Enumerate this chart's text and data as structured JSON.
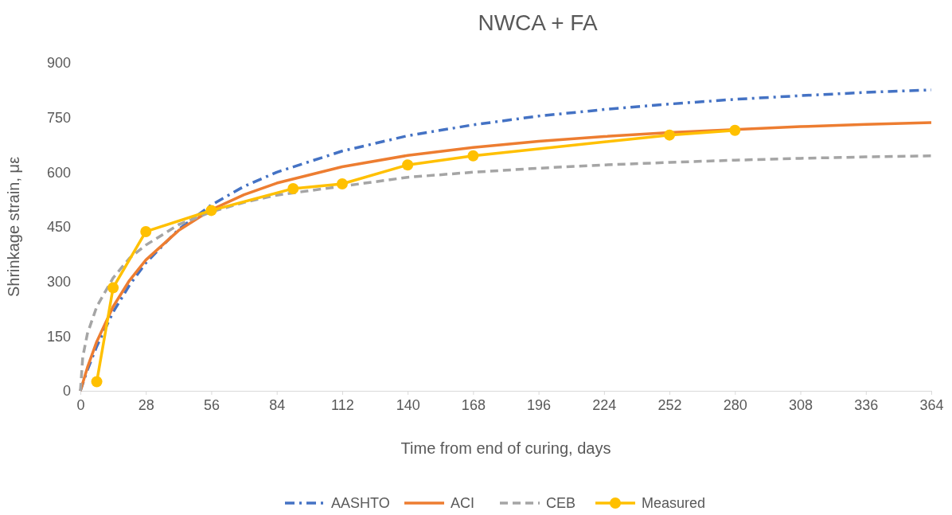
{
  "chart_data": {
    "type": "line",
    "title": "NWCA + FA",
    "xlabel": "Time from end of curing, days",
    "ylabel": "Shrinkage strain, με",
    "xlim": [
      0,
      364
    ],
    "xticks": [
      0,
      28,
      56,
      84,
      112,
      140,
      168,
      196,
      224,
      252,
      280,
      308,
      336,
      364
    ],
    "ylim": [
      0,
      900
    ],
    "yticks": [
      0,
      150,
      300,
      450,
      600,
      750,
      900
    ],
    "legend": "bottom",
    "series": [
      {
        "name": "AASHTO",
        "color": "#4472c4",
        "line_style": "dashdot",
        "marker": "none",
        "x": [
          0,
          3,
          7,
          14,
          21,
          28,
          42,
          56,
          70,
          84,
          112,
          140,
          168,
          196,
          224,
          252,
          280,
          308,
          336,
          364
        ],
        "values": [
          0,
          57,
          122,
          216,
          290,
          351,
          443,
          510,
          561,
          600,
          658,
          700,
          730,
          754,
          772,
          787,
          800,
          810,
          819,
          826
        ]
      },
      {
        "name": "ACI",
        "color": "#ed7d31",
        "line_style": "solid",
        "marker": "none",
        "x": [
          0,
          3,
          7,
          14,
          21,
          28,
          42,
          56,
          70,
          84,
          112,
          140,
          168,
          196,
          224,
          252,
          280,
          308,
          336,
          364
        ],
        "values": [
          0,
          64,
          135,
          231,
          303,
          359,
          440,
          497,
          538,
          570,
          615,
          646,
          668,
          685,
          698,
          709,
          717,
          725,
          731,
          736
        ]
      },
      {
        "name": "CEB",
        "color": "#a5a5a5",
        "line_style": "dashed",
        "marker": "none",
        "x": [
          0,
          1,
          3,
          7,
          14,
          21,
          28,
          42,
          56,
          70,
          84,
          140,
          168,
          196,
          224,
          252,
          280,
          308,
          336,
          364
        ],
        "values": [
          0,
          92,
          157,
          231,
          310,
          364,
          400,
          456,
          491,
          517,
          537,
          586,
          600,
          611,
          620,
          627,
          633,
          638,
          642,
          645
        ]
      },
      {
        "name": "Measured",
        "color": "#ffc000",
        "line_style": "solid",
        "marker": "circle",
        "x": [
          7,
          14,
          28,
          56,
          91,
          112,
          140,
          168,
          252,
          280
        ],
        "values": [
          25,
          283,
          437,
          495,
          555,
          568,
          620,
          645,
          702,
          715
        ]
      }
    ]
  }
}
